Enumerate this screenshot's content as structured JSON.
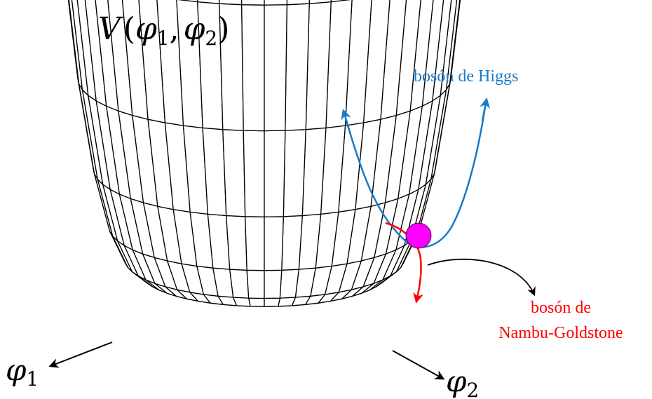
{
  "axes": {
    "v_label": {
      "func": "V",
      "open": "(",
      "arg1": "φ",
      "sub1": "1",
      "comma": ",",
      "arg2": "φ",
      "sub2": "2",
      "close": ")"
    },
    "phi1_label": {
      "sym": "φ",
      "sub": "1"
    },
    "phi2_label": {
      "sym": "φ",
      "sub": "2"
    }
  },
  "annotations": {
    "higgs": {
      "text": "bosón de Higgs",
      "color": "#1a7ac9"
    },
    "nambu": {
      "line1": "bosón de",
      "line2": "Nambu-Goldstone",
      "color": "#ff0000"
    }
  },
  "ball": {
    "color": "#ff00ff"
  },
  "surface": {
    "stroke": "#000000",
    "fill": "#ffffff"
  }
}
